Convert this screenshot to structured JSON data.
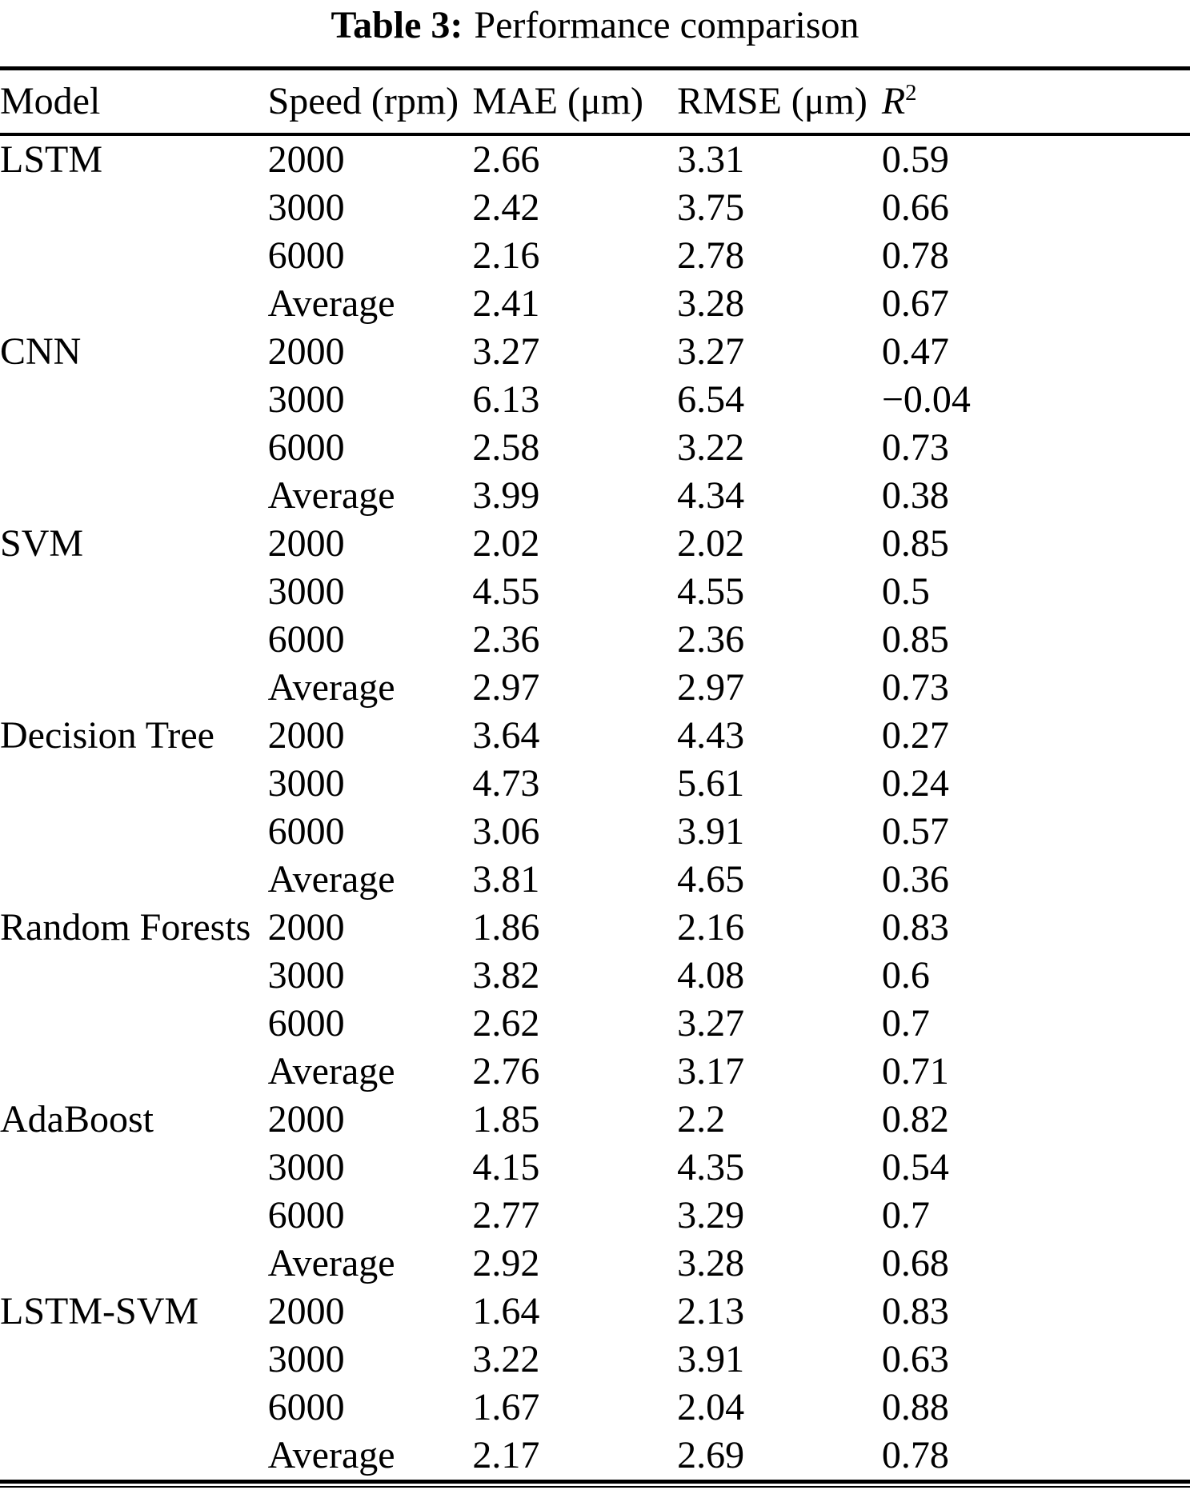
{
  "caption": {
    "label": "Table 3:",
    "text": "Performance comparison"
  },
  "table": {
    "columns": [
      "Model",
      "Speed (rpm)",
      "MAE (μm)",
      "RMSE (μm)",
      "R²"
    ],
    "r2_header": {
      "base": "R",
      "sup": "2"
    },
    "groups": [
      {
        "model": "LSTM",
        "rows": [
          {
            "speed": "2000",
            "mae": "2.66",
            "rmse": "3.31",
            "r2": "0.59"
          },
          {
            "speed": "3000",
            "mae": "2.42",
            "rmse": "3.75",
            "r2": "0.66"
          },
          {
            "speed": "6000",
            "mae": "2.16",
            "rmse": "2.78",
            "r2": "0.78"
          },
          {
            "speed": "Average",
            "mae": "2.41",
            "rmse": "3.28",
            "r2": "0.67"
          }
        ]
      },
      {
        "model": "CNN",
        "rows": [
          {
            "speed": "2000",
            "mae": "3.27",
            "rmse": "3.27",
            "r2": "0.47"
          },
          {
            "speed": "3000",
            "mae": "6.13",
            "rmse": "6.54",
            "r2": "−0.04"
          },
          {
            "speed": "6000",
            "mae": "2.58",
            "rmse": "3.22",
            "r2": "0.73"
          },
          {
            "speed": "Average",
            "mae": "3.99",
            "rmse": "4.34",
            "r2": "0.38"
          }
        ]
      },
      {
        "model": "SVM",
        "rows": [
          {
            "speed": "2000",
            "mae": "2.02",
            "rmse": "2.02",
            "r2": "0.85"
          },
          {
            "speed": "3000",
            "mae": "4.55",
            "rmse": "4.55",
            "r2": "0.5"
          },
          {
            "speed": "6000",
            "mae": "2.36",
            "rmse": "2.36",
            "r2": "0.85"
          },
          {
            "speed": "Average",
            "mae": "2.97",
            "rmse": "2.97",
            "r2": "0.73"
          }
        ]
      },
      {
        "model": "Decision Tree",
        "rows": [
          {
            "speed": "2000",
            "mae": "3.64",
            "rmse": "4.43",
            "r2": "0.27"
          },
          {
            "speed": "3000",
            "mae": "4.73",
            "rmse": "5.61",
            "r2": "0.24"
          },
          {
            "speed": "6000",
            "mae": "3.06",
            "rmse": "3.91",
            "r2": "0.57"
          },
          {
            "speed": "Average",
            "mae": "3.81",
            "rmse": "4.65",
            "r2": "0.36"
          }
        ]
      },
      {
        "model": "Random Forests",
        "rows": [
          {
            "speed": "2000",
            "mae": "1.86",
            "rmse": "2.16",
            "r2": "0.83"
          },
          {
            "speed": "3000",
            "mae": "3.82",
            "rmse": "4.08",
            "r2": "0.6"
          },
          {
            "speed": "6000",
            "mae": "2.62",
            "rmse": "3.27",
            "r2": "0.7"
          },
          {
            "speed": "Average",
            "mae": "2.76",
            "rmse": "3.17",
            "r2": "0.71"
          }
        ]
      },
      {
        "model": "AdaBoost",
        "rows": [
          {
            "speed": "2000",
            "mae": "1.85",
            "rmse": "2.2",
            "r2": "0.82"
          },
          {
            "speed": "3000",
            "mae": "4.15",
            "rmse": "4.35",
            "r2": "0.54"
          },
          {
            "speed": "6000",
            "mae": "2.77",
            "rmse": "3.29",
            "r2": "0.7"
          },
          {
            "speed": "Average",
            "mae": "2.92",
            "rmse": "3.28",
            "r2": "0.68"
          }
        ]
      },
      {
        "model": "LSTM-SVM",
        "rows": [
          {
            "speed": "2000",
            "mae": "1.64",
            "rmse": "2.13",
            "r2": "0.83"
          },
          {
            "speed": "3000",
            "mae": "3.22",
            "rmse": "3.91",
            "r2": "0.63"
          },
          {
            "speed": "6000",
            "mae": "1.67",
            "rmse": "2.04",
            "r2": "0.88"
          },
          {
            "speed": "Average",
            "mae": "2.17",
            "rmse": "2.69",
            "r2": "0.78"
          }
        ]
      }
    ]
  }
}
